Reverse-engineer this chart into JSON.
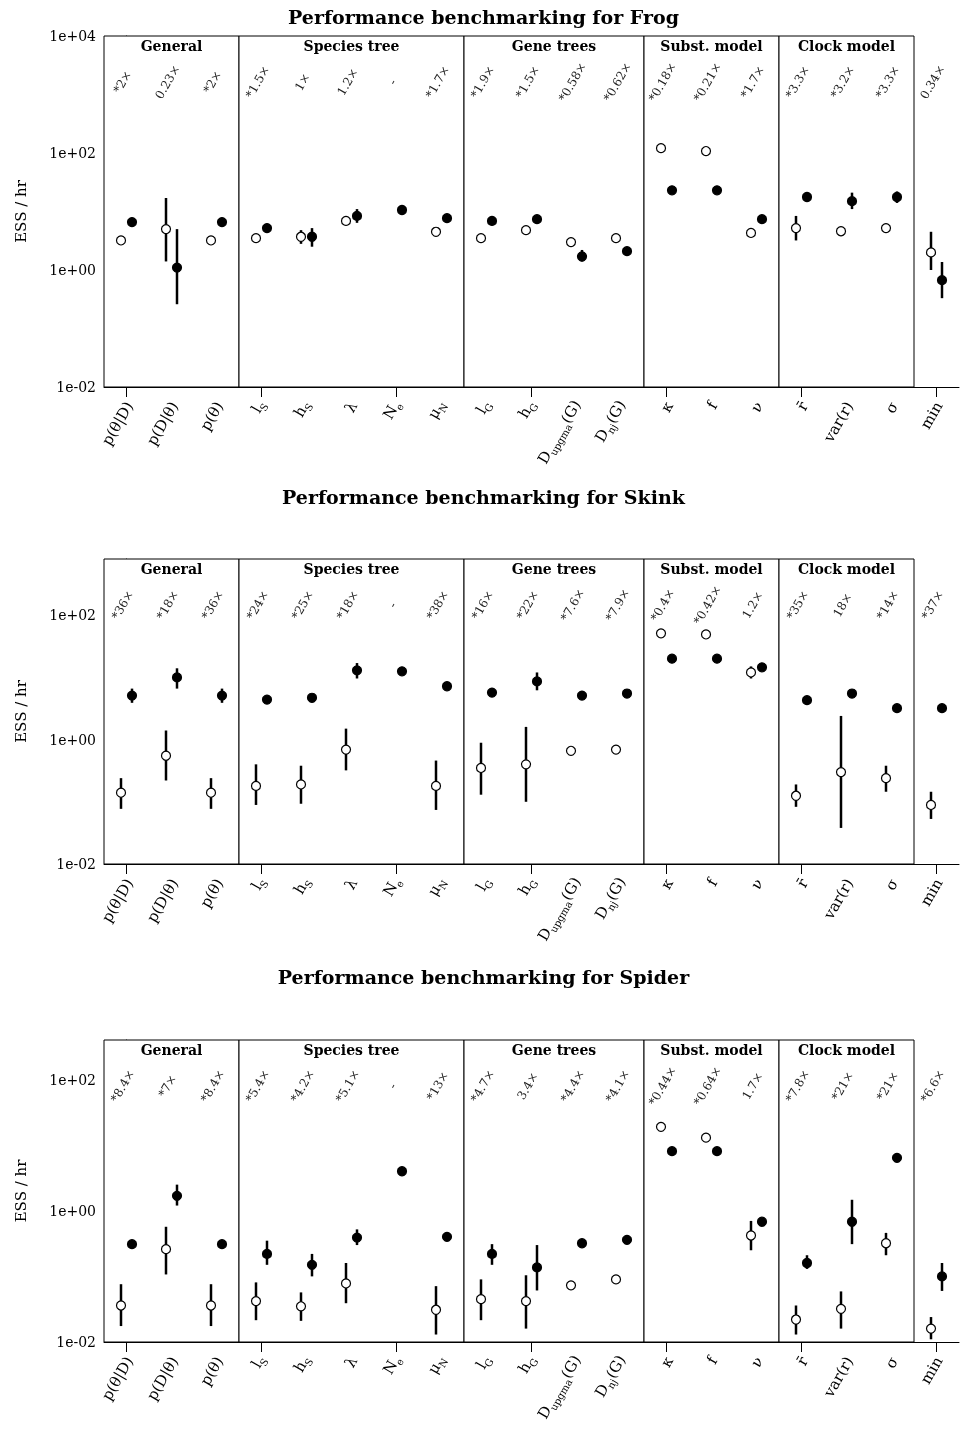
{
  "chart_data": [
    {
      "type": "scatter",
      "title": "Performance benchmarking for Frog",
      "ylabel": "ESS / hr",
      "log": "y",
      "marker": "circle",
      "categories": [
        "p(θ|D)",
        "p(D|θ)",
        "p(θ)",
        "l$_{S}$",
        "h$_{S}$",
        "λ",
        "N$_{e}$",
        "μ$_{N}$",
        "l$_{G}$",
        "h$_{G}$",
        "D$_{upgma}$(G)",
        "D$_{nj}$(G)",
        "κ",
        "f",
        "ν",
        "r̄",
        "var(r)",
        "σ",
        "min"
      ],
      "ylim": [
        0.01,
        10000
      ],
      "yticks": [
        {
          "value": 0.01,
          "label": "1e-02"
        },
        {
          "value": 1,
          "label": "1e+00"
        },
        {
          "value": 100,
          "label": "1e+02"
        },
        {
          "value": 10000,
          "label": "1e+04"
        }
      ],
      "series": [
        {
          "color": "#ffffff",
          "values": [
            3.2,
            5.0,
            3.2,
            3.5,
            3.7,
            6.9,
            null,
            4.5,
            3.5,
            4.8,
            3.0,
            3.5,
            121,
            108,
            4.3,
            5.2,
            4.6,
            5.2,
            2.0
          ],
          "errors": [
            null,
            [
              1.4,
              17
            ],
            null,
            null,
            [
              2.8,
              4.8
            ],
            null,
            null,
            null,
            null,
            null,
            null,
            null,
            null,
            null,
            null,
            [
              3.2,
              8.4
            ],
            null,
            null,
            [
              1.0,
              4.5
            ]
          ]
        },
        {
          "color": "#000000",
          "values": [
            6.6,
            1.1,
            6.6,
            5.2,
            3.7,
            8.4,
            10.6,
            7.7,
            6.9,
            7.4,
            1.7,
            2.1,
            23,
            23,
            7.4,
            17.7,
            15,
            17.7,
            0.67
          ],
          "errors": [
            null,
            [
              0.26,
              5
            ],
            null,
            null,
            [
              2.5,
              5.2
            ],
            [
              6.4,
              11
            ],
            null,
            null,
            null,
            null,
            [
              1.4,
              2.2
            ],
            null,
            null,
            null,
            null,
            null,
            [
              11,
              21
            ],
            [
              14,
              22
            ],
            [
              0.33,
              1.37
            ]
          ]
        }
      ],
      "bands": [
        {
          "axis": "x",
          "from": "p(θ|D)",
          "to": "p(θ)",
          "label": "General",
          "color": "#ffffff"
        },
        {
          "axis": "x",
          "from": "l$_{S}$",
          "to": "μ$_{N}$",
          "label": "Species tree",
          "color": "#ffffff"
        },
        {
          "axis": "x",
          "from": "l$_{G}$",
          "to": "D$_{nj}$(G)",
          "label": "Gene trees",
          "color": "#ffffff"
        },
        {
          "axis": "x",
          "from": "κ",
          "to": "ν",
          "label": "Subst. model",
          "color": "#ffffff"
        },
        {
          "axis": "x",
          "from": "r̄",
          "to": "σ",
          "label": "Clock model",
          "color": "#ffffff"
        }
      ],
      "annotations": [
        "*2×",
        "0.23×",
        "*2×",
        "*1.5×",
        "1×",
        "1.2×",
        "-",
        "*1.7×",
        "*1.9×",
        "*1.5×",
        "*0.58×",
        "*0.62×",
        "*0.18×",
        "*0.21×",
        "*1.7×",
        "*3.3×",
        "*3.2×",
        "*3.3×",
        "0.34×"
      ]
    },
    {
      "type": "scatter",
      "title": "Performance benchmarking for Skink",
      "ylabel": "ESS / hr",
      "log": "y",
      "marker": "circle",
      "categories": [
        "p(θ|D)",
        "p(D|θ)",
        "p(θ)",
        "l$_{S}$",
        "h$_{S}$",
        "λ",
        "N$_{e}$",
        "μ$_{N}$",
        "l$_{G}$",
        "h$_{G}$",
        "D$_{upgma}$(G)",
        "D$_{nj}$(G)",
        "κ",
        "f",
        "ν",
        "r̄",
        "var(r)",
        "σ",
        "min"
      ],
      "ylim": [
        0.01,
        800
      ],
      "yticks": [
        {
          "value": 0.01,
          "label": "1e-02"
        },
        {
          "value": 1,
          "label": "1e+00"
        },
        {
          "value": 100,
          "label": "1e+02"
        }
      ],
      "series": [
        {
          "color": "#ffffff",
          "values": [
            0.14,
            0.55,
            0.14,
            0.18,
            0.19,
            0.69,
            null,
            0.18,
            0.35,
            0.4,
            0.66,
            0.69,
            51,
            49,
            12,
            0.125,
            0.3,
            0.24,
            0.089
          ],
          "errors": [
            [
              0.077,
              0.24
            ],
            [
              0.22,
              1.4
            ],
            [
              0.077,
              0.24
            ],
            [
              0.089,
              0.4
            ],
            [
              0.093,
              0.38
            ],
            [
              0.32,
              1.5
            ],
            null,
            [
              0.074,
              0.46
            ],
            [
              0.13,
              0.89
            ],
            [
              0.1,
              1.6
            ],
            null,
            null,
            null,
            null,
            [
              9.6,
              15
            ],
            [
              0.083,
              0.19
            ],
            [
              0.038,
              2.4
            ],
            [
              0.145,
              0.38
            ],
            [
              0.053,
              0.145
            ]
          ]
        },
        {
          "color": "#000000",
          "values": [
            5.1,
            10,
            5.1,
            4.4,
            4.7,
            13,
            12.5,
            7.2,
            5.7,
            8.6,
            5.1,
            5.5,
            20,
            20,
            14.5,
            4.3,
            5.5,
            3.2,
            3.2
          ],
          "errors": [
            [
              3.9,
              6.6
            ],
            [
              6.6,
              14
            ],
            [
              3.9,
              6.6
            ],
            null,
            null,
            [
              9.6,
              17
            ],
            null,
            null,
            null,
            [
              6.2,
              12
            ],
            null,
            null,
            null,
            null,
            null,
            null,
            null,
            null,
            null
          ]
        }
      ],
      "bands": [
        {
          "axis": "x",
          "from": "p(θ|D)",
          "to": "p(θ)",
          "label": "General",
          "color": "#ffffff"
        },
        {
          "axis": "x",
          "from": "l$_{S}$",
          "to": "μ$_{N}$",
          "label": "Species tree",
          "color": "#ffffff"
        },
        {
          "axis": "x",
          "from": "l$_{G}$",
          "to": "D$_{nj}$(G)",
          "label": "Gene trees",
          "color": "#ffffff"
        },
        {
          "axis": "x",
          "from": "κ",
          "to": "ν",
          "label": "Subst. model",
          "color": "#ffffff"
        },
        {
          "axis": "x",
          "from": "r̄",
          "to": "σ",
          "label": "Clock model",
          "color": "#ffffff"
        }
      ],
      "annotations": [
        "*36×",
        "*18×",
        "*36×",
        "*24×",
        "*25×",
        "*18×",
        "-",
        "*38×",
        "*16×",
        "*22×",
        "*7.6×",
        "*7.9×",
        "*0.4×",
        "*0.42×",
        "1.2×",
        "*35×",
        "18×",
        "*14×",
        "*37×"
      ]
    },
    {
      "type": "scatter",
      "title": "Performance benchmarking for Spider",
      "ylabel": "ESS / hr",
      "log": "y",
      "marker": "circle",
      "categories": [
        "p(θ|D)",
        "p(D|θ)",
        "p(θ)",
        "l$_{S}$",
        "h$_{S}$",
        "λ",
        "N$_{e}$",
        "μ$_{N}$",
        "l$_{G}$",
        "h$_{G}$",
        "D$_{upgma}$(G)",
        "D$_{nj}$(G)",
        "κ",
        "f",
        "ν",
        "r̄",
        "var(r)",
        "σ",
        "min"
      ],
      "ylim": [
        0.01,
        400
      ],
      "yticks": [
        {
          "value": 0.01,
          "label": "1e-02"
        },
        {
          "value": 1,
          "label": "1e+00"
        },
        {
          "value": 100,
          "label": "1e+02"
        }
      ],
      "series": [
        {
          "color": "#ffffff",
          "values": [
            0.036,
            0.26,
            0.036,
            0.042,
            0.035,
            0.078,
            null,
            0.031,
            0.045,
            0.042,
            0.073,
            0.09,
            19,
            13,
            0.42,
            0.022,
            0.032,
            0.32,
            0.016
          ],
          "errors": [
            [
              0.0175,
              0.076
            ],
            [
              0.107,
              0.57
            ],
            [
              0.0175,
              0.076
            ],
            [
              0.0215,
              0.081
            ],
            [
              0.021,
              0.057
            ],
            [
              0.039,
              0.16
            ],
            null,
            [
              0.013,
              0.071
            ],
            [
              0.0215,
              0.09
            ],
            [
              0.016,
              0.104
            ],
            null,
            null,
            null,
            null,
            [
              0.25,
              0.7
            ],
            [
              0.013,
              0.036
            ],
            [
              0.016,
              0.059
            ],
            [
              0.21,
              0.46
            ],
            [
              0.011,
              0.024
            ]
          ]
        },
        {
          "color": "#000000",
          "values": [
            0.31,
            1.69,
            0.31,
            0.22,
            0.15,
            0.39,
            4.0,
            0.4,
            0.22,
            0.137,
            0.32,
            0.36,
            8.1,
            8.1,
            0.68,
            0.16,
            0.68,
            6.4,
            0.1
          ],
          "errors": [
            null,
            [
              1.2,
              2.5
            ],
            null,
            [
              0.15,
              0.35
            ],
            [
              0.1,
              0.22
            ],
            [
              0.3,
              0.52
            ],
            null,
            null,
            [
              0.15,
              0.31
            ],
            [
              0.061,
              0.3
            ],
            null,
            null,
            null,
            null,
            null,
            [
              0.13,
              0.21
            ],
            [
              0.31,
              1.47
            ],
            null,
            [
              0.06,
              0.16
            ]
          ]
        }
      ],
      "bands": [
        {
          "axis": "x",
          "from": "p(θ|D)",
          "to": "p(θ)",
          "label": "General",
          "color": "#ffffff"
        },
        {
          "axis": "x",
          "from": "l$_{S}$",
          "to": "μ$_{N}$",
          "label": "Species tree",
          "color": "#ffffff"
        },
        {
          "axis": "x",
          "from": "l$_{G}$",
          "to": "D$_{nj}$(G)",
          "label": "Gene trees",
          "color": "#ffffff"
        },
        {
          "axis": "x",
          "from": "κ",
          "to": "ν",
          "label": "Subst. model",
          "color": "#ffffff"
        },
        {
          "axis": "x",
          "from": "r̄",
          "to": "σ",
          "label": "Clock model",
          "color": "#ffffff"
        }
      ],
      "annotations": [
        "*8.4×",
        "*7×",
        "*8.4×",
        "*5.4×",
        "*4.2×",
        "*5.1×",
        "-",
        "*13×",
        "*4.7×",
        "3.4×",
        "*4.4×",
        "*4.1×",
        "*0.44×",
        "*0.64×",
        "1.7×",
        "*7.8×",
        "*21×",
        "*21×",
        "*6.6×"
      ]
    }
  ]
}
